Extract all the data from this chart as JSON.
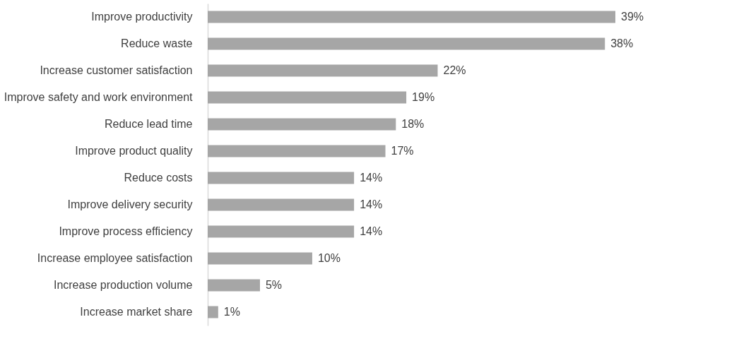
{
  "chart_data": {
    "type": "bar",
    "orientation": "horizontal",
    "categories": [
      "Improve productivity",
      "Reduce waste",
      "Increase customer satisfaction",
      "Improve safety and work environment",
      "Reduce lead time",
      "Improve product quality",
      "Reduce costs",
      "Improve delivery security",
      "Improve process efficiency",
      "Increase employee satisfaction",
      "Increase production volume",
      "Increase market share"
    ],
    "values": [
      39,
      38,
      22,
      19,
      18,
      17,
      14,
      14,
      14,
      10,
      5,
      1
    ],
    "value_labels": [
      "39%",
      "38%",
      "22%",
      "19%",
      "18%",
      "17%",
      "14%",
      "14%",
      "14%",
      "10%",
      "5%",
      "1%"
    ],
    "color": "#a6a6a6",
    "grid": false
  }
}
